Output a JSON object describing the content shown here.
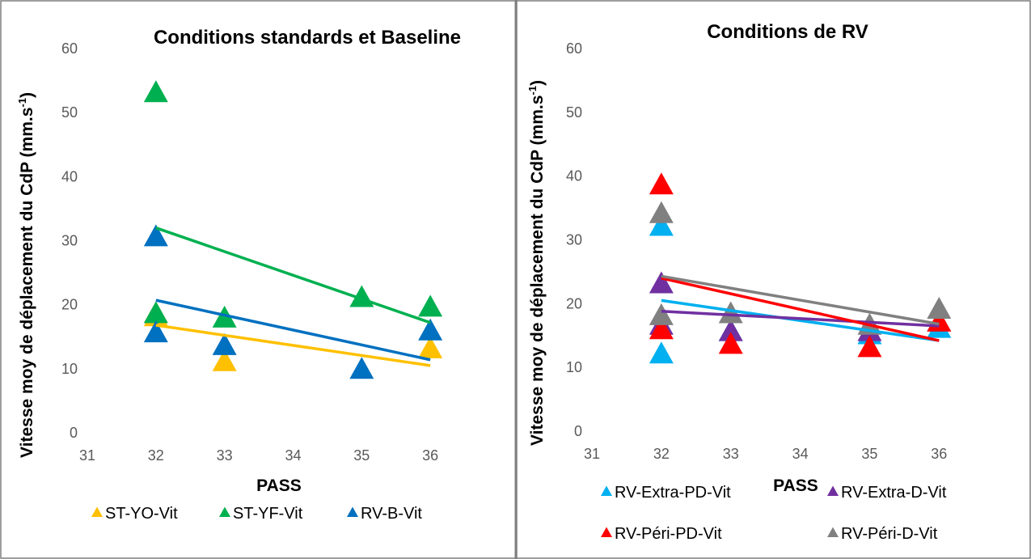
{
  "chart_data": [
    {
      "type": "scatter",
      "title": "Conditions standards et Baseline",
      "xlabel": "PASS",
      "ylabel_main": "Vitesse moy de déplacement du CdP (mm.s",
      "ylabel_sup": "-1",
      "ylabel_end": ")",
      "xlim": [
        31,
        36.8
      ],
      "ylim": [
        0,
        60
      ],
      "x_ticks": [
        "31",
        "32",
        "33",
        "34",
        "35",
        "36"
      ],
      "y_ticks": [
        "0",
        "10",
        "20",
        "30",
        "40",
        "50",
        "60"
      ],
      "legend_position": "bottom",
      "series": [
        {
          "name": "ST-YO-Vit",
          "color": "#FFC000",
          "points": [
            [
              32,
              18
            ],
            [
              32,
              18.5
            ],
            [
              33,
              11
            ],
            [
              36,
              13
            ]
          ],
          "trend": [
            [
              32,
              16.8
            ],
            [
              36,
              10.5
            ]
          ]
        },
        {
          "name": "ST-YF-Vit",
          "color": "#00B050",
          "points": [
            [
              32,
              53
            ],
            [
              32,
              18.5
            ],
            [
              33,
              17.8
            ],
            [
              35,
              21
            ],
            [
              36,
              19.5
            ]
          ],
          "trend": [
            [
              32,
              32
            ],
            [
              36,
              17.2
            ]
          ]
        },
        {
          "name": "RV-B-Vit",
          "color": "#0070C0",
          "points": [
            [
              32,
              30.5
            ],
            [
              32,
              15.5
            ],
            [
              33,
              13.5
            ],
            [
              35,
              9.8
            ],
            [
              36,
              15.8
            ]
          ],
          "trend": [
            [
              32,
              20.7
            ],
            [
              36,
              11.4
            ]
          ]
        }
      ]
    },
    {
      "type": "scatter",
      "title": "Conditions de RV",
      "xlabel": "PASS",
      "ylabel_main": "Vitesse moy de déplacement du CdP (mm.s",
      "ylabel_sup": "-1",
      "ylabel_end": ")",
      "xlim": [
        31,
        36.8
      ],
      "ylim": [
        0,
        60
      ],
      "x_ticks": [
        "31",
        "32",
        "33",
        "34",
        "35",
        "36"
      ],
      "y_ticks": [
        "0",
        "10",
        "20",
        "30",
        "40",
        "50",
        "60"
      ],
      "legend_position": "bottom",
      "series": [
        {
          "name": "RV-Extra-PD-Vit",
          "color": "#00B0F0",
          "points": [
            [
              32,
              32
            ],
            [
              32,
              12
            ],
            [
              33,
              15.5
            ],
            [
              35,
              15
            ],
            [
              36,
              16
            ]
          ],
          "trend": [
            [
              32,
              20.5
            ],
            [
              36,
              14.2
            ]
          ]
        },
        {
          "name": "RV-Extra-D-Vit",
          "color": "#7030A0",
          "points": [
            [
              32,
              23
            ],
            [
              32,
              16.5
            ],
            [
              33,
              15.5
            ],
            [
              35,
              15.5
            ],
            [
              36,
              17
            ]
          ],
          "trend": [
            [
              32,
              18.8
            ],
            [
              36,
              16.5
            ]
          ]
        },
        {
          "name": "RV-Péri-PD-Vit",
          "color": "#FF0000",
          "points": [
            [
              32,
              38.5
            ],
            [
              32,
              15.8
            ],
            [
              33,
              13.5
            ],
            [
              35,
              13
            ],
            [
              36,
              17
            ]
          ],
          "trend": [
            [
              32,
              24
            ],
            [
              36,
              14.2
            ]
          ]
        },
        {
          "name": "RV-Péri-D-Vit",
          "color": "#808080",
          "points": [
            [
              32,
              34
            ],
            [
              32,
              18
            ],
            [
              33,
              18.3
            ],
            [
              35,
              16.5
            ],
            [
              36,
              19
            ]
          ],
          "trend": [
            [
              32,
              24.3
            ],
            [
              36,
              16.8
            ]
          ]
        }
      ]
    }
  ]
}
